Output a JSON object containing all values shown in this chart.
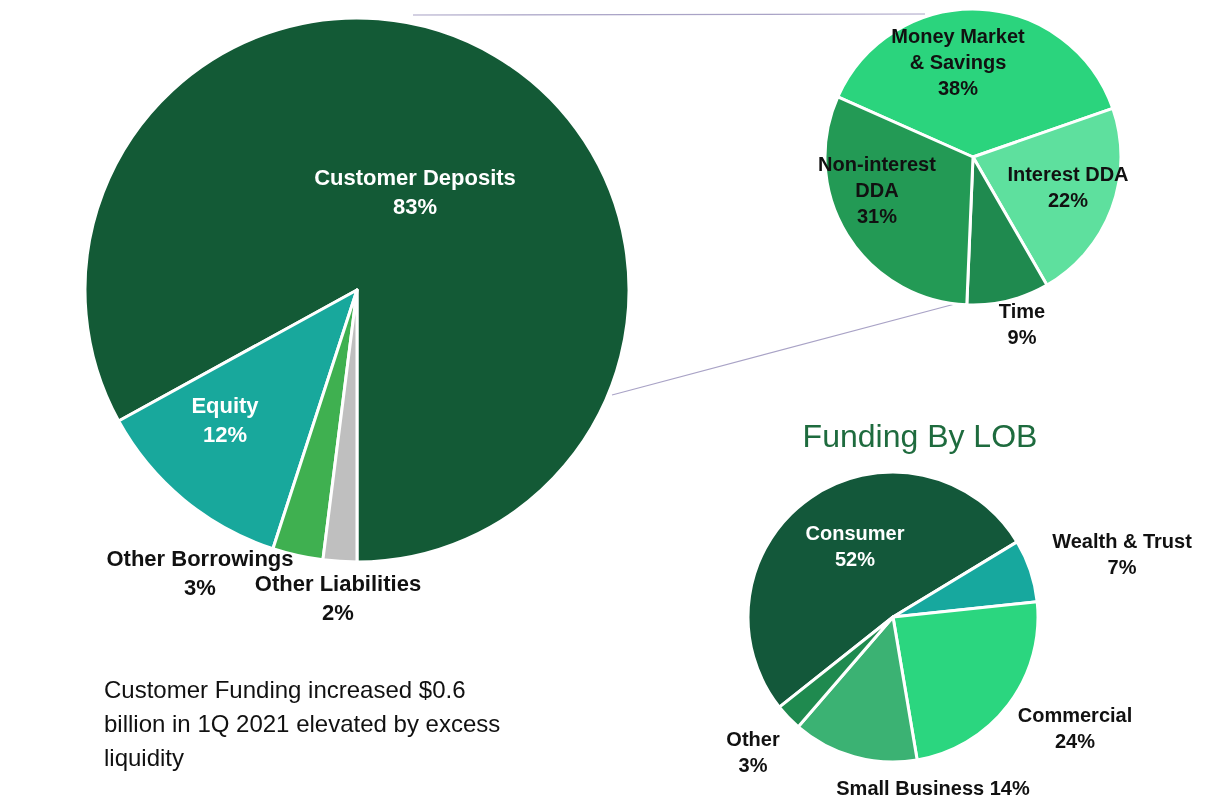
{
  "chart_data": [
    {
      "type": "pie",
      "categories": [
        "Customer Deposits",
        "Equity",
        "Other Borrowings",
        "Other Liabilities"
      ],
      "values": [
        83,
        12,
        3,
        2
      ],
      "colors": [
        "#135a36",
        "#18a89c",
        "#3fb050",
        "#bfbfbf"
      ],
      "value_labels": [
        "83%",
        "12%",
        "3%",
        "2%"
      ],
      "annotations": [
        "Customer Funding increased $0.6 billion in 1Q 2021 elevated by excess liquidity"
      ]
    },
    {
      "type": "pie",
      "categories": [
        "Money Market & Savings",
        "Interest DDA",
        "Time",
        "Non-interest DDA"
      ],
      "values": [
        38,
        22,
        9,
        31
      ],
      "colors": [
        "#2bd47d",
        "#5ee09e",
        "#1f8a4f",
        "#239a55"
      ],
      "value_labels": [
        "38%",
        "22%",
        "9%",
        "31%"
      ]
    },
    {
      "type": "pie",
      "title": "Funding By LOB",
      "categories": [
        "Consumer",
        "Wealth & Trust",
        "Commercial",
        "Small Business",
        "Other"
      ],
      "values": [
        52,
        7,
        24,
        14,
        3
      ],
      "colors": [
        "#13583a",
        "#17a89e",
        "#2bd67f",
        "#3bb273",
        "#1f8a4f"
      ],
      "value_labels": [
        "52%",
        "7%",
        "24%",
        "14%",
        "3%"
      ]
    }
  ]
}
